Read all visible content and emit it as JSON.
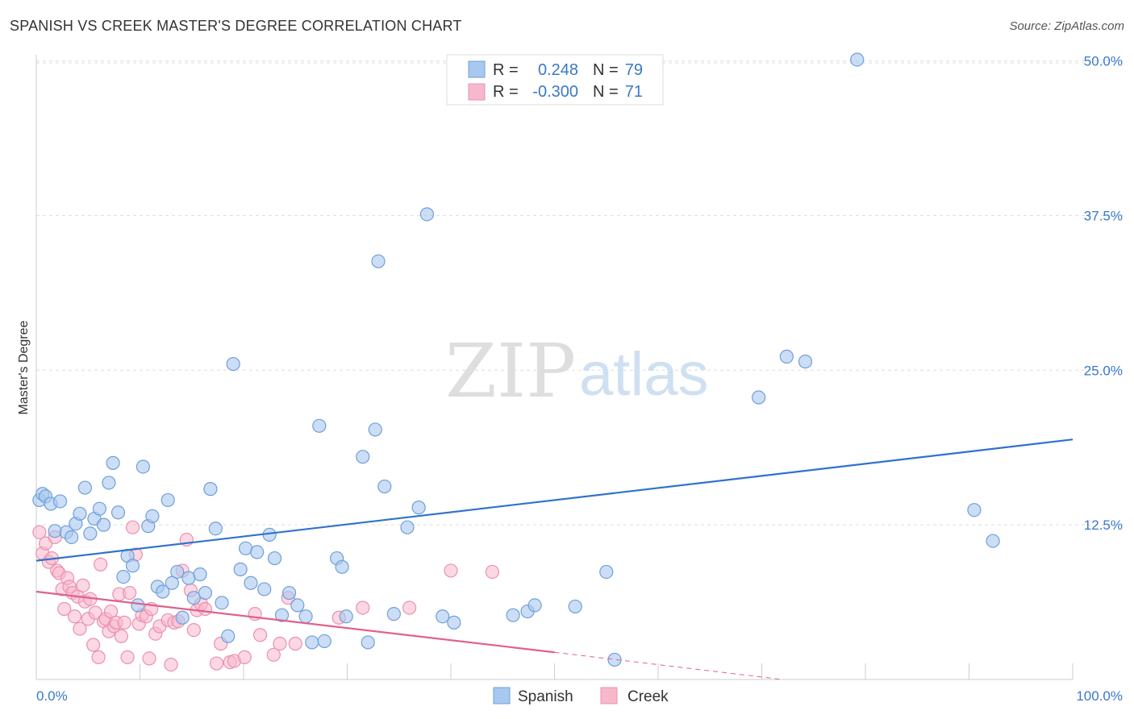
{
  "title": "SPANISH VS CREEK MASTER'S DEGREE CORRELATION CHART",
  "source": "Source: ZipAtlas.com",
  "watermark": {
    "zip": "ZIP",
    "atlas": "atlas"
  },
  "legend": {
    "rows": [
      {
        "r_label": "R =",
        "r_value": "0.248",
        "n_label": "N =",
        "n_value": "79"
      },
      {
        "r_label": "R =",
        "r_value": "-0.300",
        "n_label": "N =",
        "n_value": "71"
      }
    ]
  },
  "bottom_legend": [
    "Spanish",
    "Creek"
  ],
  "colors": {
    "spanish_fill": "#a8c8f0",
    "spanish_stroke": "#6f9fd8",
    "spanish_line": "#2f72cc",
    "creek_fill": "#f7b8cc",
    "creek_stroke": "#ec8fae",
    "creek_line": "#e0608e",
    "tick_text": "#3a78c9",
    "grid": "#dddddd"
  },
  "chart_data": {
    "type": "scatter",
    "xlabel": "",
    "ylabel": "Master's Degree",
    "x_ticks": [
      "0.0%",
      "100.0%"
    ],
    "y_ticks": [
      "12.5%",
      "25.0%",
      "37.5%",
      "50.0%"
    ],
    "xlim": [
      0,
      100
    ],
    "ylim": [
      0,
      52
    ],
    "grid": true,
    "legend_position": "top-center",
    "series": [
      {
        "name": "Spanish",
        "points": [
          [
            0.3,
            14.5
          ],
          [
            0.6,
            15.0
          ],
          [
            0.9,
            14.8
          ],
          [
            1.4,
            14.2
          ],
          [
            1.8,
            12.0
          ],
          [
            2.3,
            14.4
          ],
          [
            2.9,
            11.9
          ],
          [
            3.4,
            11.5
          ],
          [
            3.8,
            12.6
          ],
          [
            4.2,
            13.4
          ],
          [
            4.7,
            15.5
          ],
          [
            5.2,
            11.8
          ],
          [
            5.6,
            13.0
          ],
          [
            6.1,
            13.8
          ],
          [
            6.5,
            12.5
          ],
          [
            7.0,
            15.9
          ],
          [
            7.4,
            17.5
          ],
          [
            7.9,
            13.5
          ],
          [
            8.4,
            8.3
          ],
          [
            8.8,
            10.0
          ],
          [
            9.3,
            9.2
          ],
          [
            9.8,
            6.0
          ],
          [
            10.3,
            17.2
          ],
          [
            10.8,
            12.4
          ],
          [
            11.2,
            13.2
          ],
          [
            11.7,
            7.5
          ],
          [
            12.2,
            7.1
          ],
          [
            12.7,
            14.5
          ],
          [
            13.1,
            7.8
          ],
          [
            13.6,
            8.7
          ],
          [
            14.1,
            5.0
          ],
          [
            14.7,
            8.2
          ],
          [
            15.2,
            6.6
          ],
          [
            15.8,
            8.5
          ],
          [
            16.3,
            7.0
          ],
          [
            16.8,
            15.4
          ],
          [
            17.3,
            12.2
          ],
          [
            17.9,
            6.2
          ],
          [
            18.5,
            3.5
          ],
          [
            19.0,
            25.5
          ],
          [
            19.7,
            8.9
          ],
          [
            20.2,
            10.6
          ],
          [
            20.7,
            7.8
          ],
          [
            21.3,
            10.3
          ],
          [
            22.0,
            7.3
          ],
          [
            22.5,
            11.7
          ],
          [
            23.0,
            9.8
          ],
          [
            23.7,
            5.2
          ],
          [
            24.4,
            7.0
          ],
          [
            25.2,
            6.0
          ],
          [
            26.0,
            5.1
          ],
          [
            26.6,
            3.0
          ],
          [
            27.3,
            20.5
          ],
          [
            27.8,
            3.1
          ],
          [
            29.0,
            9.8
          ],
          [
            29.5,
            9.1
          ],
          [
            29.9,
            5.1
          ],
          [
            31.5,
            18.0
          ],
          [
            32.0,
            3.0
          ],
          [
            32.7,
            20.2
          ],
          [
            33.0,
            33.8
          ],
          [
            33.6,
            15.6
          ],
          [
            34.5,
            5.3
          ],
          [
            35.8,
            12.3
          ],
          [
            36.9,
            13.9
          ],
          [
            37.7,
            37.6
          ],
          [
            39.2,
            5.1
          ],
          [
            40.3,
            4.6
          ],
          [
            46.0,
            5.2
          ],
          [
            47.4,
            5.5
          ],
          [
            48.1,
            6.0
          ],
          [
            52.0,
            5.9
          ],
          [
            55.0,
            8.7
          ],
          [
            55.8,
            1.6
          ],
          [
            69.7,
            22.8
          ],
          [
            72.4,
            26.1
          ],
          [
            74.2,
            25.7
          ],
          [
            79.2,
            50.1
          ],
          [
            90.5,
            13.7
          ],
          [
            92.3,
            11.2
          ]
        ]
      },
      {
        "name": "Creek",
        "points": [
          [
            0.3,
            11.9
          ],
          [
            0.6,
            10.2
          ],
          [
            0.9,
            11.0
          ],
          [
            1.2,
            9.5
          ],
          [
            1.5,
            9.8
          ],
          [
            1.8,
            11.5
          ],
          [
            2.0,
            8.8
          ],
          [
            2.2,
            8.6
          ],
          [
            2.5,
            7.3
          ],
          [
            2.7,
            5.7
          ],
          [
            3.0,
            8.2
          ],
          [
            3.2,
            7.5
          ],
          [
            3.5,
            7.0
          ],
          [
            3.7,
            5.1
          ],
          [
            4.0,
            6.7
          ],
          [
            4.2,
            4.1
          ],
          [
            4.5,
            7.6
          ],
          [
            4.7,
            6.3
          ],
          [
            5.0,
            4.9
          ],
          [
            5.2,
            6.5
          ],
          [
            5.5,
            2.8
          ],
          [
            5.7,
            5.4
          ],
          [
            6.0,
            1.8
          ],
          [
            6.2,
            9.3
          ],
          [
            6.5,
            4.7
          ],
          [
            6.7,
            4.9
          ],
          [
            7.0,
            3.9
          ],
          [
            7.2,
            5.5
          ],
          [
            7.5,
            4.3
          ],
          [
            7.7,
            4.6
          ],
          [
            8.0,
            6.9
          ],
          [
            8.2,
            3.5
          ],
          [
            8.5,
            4.6
          ],
          [
            8.8,
            1.8
          ],
          [
            9.0,
            7.0
          ],
          [
            9.3,
            12.3
          ],
          [
            9.6,
            10.1
          ],
          [
            9.9,
            4.5
          ],
          [
            10.2,
            5.2
          ],
          [
            10.6,
            5.1
          ],
          [
            10.9,
            1.7
          ],
          [
            11.1,
            5.7
          ],
          [
            11.5,
            3.7
          ],
          [
            11.9,
            4.3
          ],
          [
            12.7,
            4.8
          ],
          [
            13.0,
            1.2
          ],
          [
            13.3,
            4.6
          ],
          [
            13.7,
            4.7
          ],
          [
            14.1,
            8.8
          ],
          [
            14.5,
            11.3
          ],
          [
            14.9,
            7.2
          ],
          [
            15.2,
            4.0
          ],
          [
            15.5,
            5.6
          ],
          [
            15.9,
            6.1
          ],
          [
            16.3,
            5.7
          ],
          [
            17.4,
            1.3
          ],
          [
            17.8,
            2.9
          ],
          [
            18.7,
            1.4
          ],
          [
            19.1,
            1.5
          ],
          [
            20.1,
            1.8
          ],
          [
            21.1,
            5.3
          ],
          [
            21.6,
            3.6
          ],
          [
            22.9,
            2.0
          ],
          [
            23.5,
            2.9
          ],
          [
            24.3,
            6.6
          ],
          [
            25.0,
            2.9
          ],
          [
            29.2,
            5.0
          ],
          [
            31.5,
            5.8
          ],
          [
            36.0,
            5.8
          ],
          [
            40.0,
            8.8
          ],
          [
            44.0,
            8.7
          ]
        ]
      }
    ],
    "trendlines": [
      {
        "series": "Spanish",
        "from": [
          0,
          9.6
        ],
        "to": [
          100,
          19.4
        ],
        "style": "solid"
      },
      {
        "series": "Creek",
        "from": [
          0,
          7.1
        ],
        "to": [
          50,
          2.2
        ],
        "style": "solid"
      },
      {
        "series": "Creek",
        "from": [
          50,
          2.2
        ],
        "to": [
          72,
          0
        ],
        "style": "dashed"
      }
    ]
  }
}
